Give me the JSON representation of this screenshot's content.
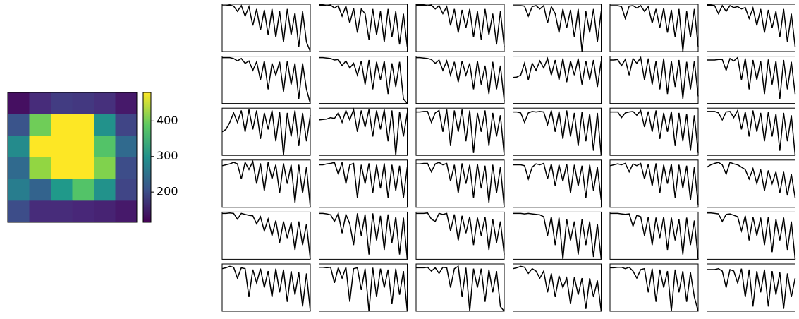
{
  "chart_data": [
    {
      "type": "heatmap",
      "colormap": "viridis",
      "values": [
        [
          130,
          160,
          180,
          175,
          165,
          140
        ],
        [
          210,
          400,
          480,
          480,
          300,
          190
        ],
        [
          290,
          480,
          480,
          480,
          380,
          240
        ],
        [
          240,
          420,
          480,
          480,
          410,
          200
        ],
        [
          270,
          230,
          310,
          380,
          300,
          190
        ],
        [
          200,
          160,
          160,
          155,
          150,
          140
        ]
      ],
      "zlim": [
        115,
        480
      ],
      "zticks": [
        200,
        300,
        400
      ]
    },
    {
      "type": "line_grid",
      "rows": 6,
      "cols": 6,
      "color": "#000000",
      "ylim": [
        0,
        1
      ],
      "series": [
        {
          "values": [
            0.97,
            0.97,
            0.98,
            0.96,
            0.85,
            0.97,
            0.75,
            0.95,
            0.55,
            0.9,
            0.45,
            0.88,
            0.35,
            0.9,
            0.3,
            0.85,
            0.2,
            0.9,
            0.35,
            0.82,
            0.1,
            0.85,
            0.2,
            0.0
          ]
        },
        {
          "values": [
            0.98,
            0.98,
            0.97,
            0.98,
            0.92,
            0.97,
            0.75,
            0.96,
            0.6,
            0.92,
            0.4,
            0.9,
            0.8,
            0.25,
            0.9,
            0.35,
            0.85,
            0.2,
            0.9,
            0.3,
            0.85,
            0.15,
            0.8,
            0.1
          ]
        },
        {
          "values": [
            0.98,
            0.98,
            0.98,
            0.97,
            0.98,
            0.9,
            0.97,
            0.8,
            0.95,
            0.55,
            0.9,
            0.4,
            0.88,
            0.5,
            0.9,
            0.3,
            0.85,
            0.25,
            0.9,
            0.35,
            0.8,
            0.15,
            0.85,
            0.1
          ]
        },
        {
          "values": [
            0.97,
            0.97,
            0.97,
            0.96,
            0.75,
            0.95,
            0.97,
            0.9,
            0.97,
            0.6,
            0.95,
            0.8,
            0.4,
            0.9,
            0.5,
            0.88,
            0.3,
            0.9,
            0.0,
            0.85,
            0.4,
            0.9,
            0.2,
            0.85
          ]
        },
        {
          "values": [
            0.97,
            0.97,
            0.97,
            0.95,
            0.7,
            0.96,
            0.97,
            0.92,
            0.97,
            0.85,
            0.95,
            0.6,
            0.9,
            0.5,
            0.92,
            0.4,
            0.88,
            0.3,
            0.9,
            0.0,
            0.85,
            0.3,
            0.9,
            0.1
          ]
        },
        {
          "values": [
            0.98,
            0.98,
            0.97,
            0.8,
            0.97,
            0.85,
            0.97,
            0.93,
            0.95,
            0.9,
            0.93,
            0.7,
            0.92,
            0.55,
            0.9,
            0.4,
            0.88,
            0.5,
            0.85,
            0.3,
            0.9,
            0.2,
            0.8,
            0.1
          ]
        },
        {
          "values": [
            0.97,
            0.97,
            0.97,
            0.95,
            0.9,
            0.95,
            0.85,
            0.9,
            0.7,
            0.88,
            0.5,
            0.9,
            0.3,
            0.85,
            0.6,
            0.88,
            0.25,
            0.9,
            0.4,
            0.85,
            0.1,
            0.85,
            0.3,
            0.0
          ]
        },
        {
          "values": [
            0.97,
            0.97,
            0.96,
            0.95,
            0.92,
            0.93,
            0.8,
            0.9,
            0.75,
            0.85,
            0.6,
            0.9,
            0.4,
            0.92,
            0.3,
            0.88,
            0.5,
            0.9,
            0.2,
            0.85,
            0.35,
            0.88,
            0.1,
            0.0
          ]
        },
        {
          "values": [
            0.97,
            0.97,
            0.96,
            0.95,
            0.93,
            0.85,
            0.92,
            0.7,
            0.9,
            0.6,
            0.88,
            0.45,
            0.9,
            0.6,
            0.85,
            0.3,
            0.9,
            0.4,
            0.8,
            0.2,
            0.88,
            0.3,
            0.8,
            0.05
          ]
        },
        {
          "values": [
            0.55,
            0.56,
            0.6,
            0.85,
            0.5,
            0.85,
            0.7,
            0.9,
            0.75,
            0.95,
            0.6,
            0.92,
            0.5,
            0.95,
            0.45,
            0.9,
            0.6,
            0.95,
            0.4,
            0.9,
            0.5,
            0.92,
            0.35,
            0.9
          ]
        },
        {
          "values": [
            0.92,
            0.92,
            0.93,
            0.8,
            0.93,
            0.6,
            0.95,
            0.85,
            0.97,
            0.5,
            0.95,
            0.4,
            0.9,
            0.3,
            0.95,
            0.2,
            0.9,
            0.35,
            0.92,
            0.1,
            0.88,
            0.3,
            0.9,
            0.15
          ]
        },
        {
          "values": [
            0.92,
            0.92,
            0.92,
            0.93,
            0.93,
            0.7,
            0.95,
            0.9,
            0.97,
            0.5,
            0.95,
            0.3,
            0.92,
            0.5,
            0.9,
            0.2,
            0.93,
            0.4,
            0.9,
            0.1,
            0.92,
            0.3,
            0.88,
            0.2
          ]
        },
        {
          "values": [
            0.5,
            0.55,
            0.7,
            0.9,
            0.7,
            0.95,
            0.5,
            0.97,
            0.55,
            0.95,
            0.35,
            0.9,
            0.55,
            0.95,
            0.3,
            0.92,
            0.0,
            0.9,
            0.4,
            0.95,
            0.2,
            0.9,
            0.3,
            0.85
          ]
        },
        {
          "values": [
            0.75,
            0.76,
            0.77,
            0.8,
            0.78,
            0.9,
            0.7,
            0.95,
            0.75,
            0.97,
            0.5,
            0.95,
            0.6,
            0.97,
            0.4,
            0.95,
            0.55,
            0.97,
            0.3,
            0.95,
            0.0,
            0.92,
            0.4,
            0.9
          ]
        },
        {
          "values": [
            0.92,
            0.92,
            0.93,
            0.93,
            0.7,
            0.9,
            0.95,
            0.5,
            0.97,
            0.2,
            0.95,
            0.5,
            0.97,
            0.3,
            0.95,
            0.05,
            0.9,
            0.5,
            0.95,
            0.2,
            0.9,
            0.4,
            0.85,
            0.0
          ]
        },
        {
          "values": [
            0.92,
            0.92,
            0.9,
            0.7,
            0.9,
            0.93,
            0.92,
            0.93,
            0.92,
            0.65,
            0.95,
            0.5,
            0.93,
            0.35,
            0.95,
            0.4,
            0.9,
            0.2,
            0.92,
            0.3,
            0.88,
            0.1,
            0.9,
            0.0
          ]
        },
        {
          "values": [
            0.92,
            0.92,
            0.92,
            0.8,
            0.9,
            0.92,
            0.93,
            0.85,
            0.95,
            0.6,
            0.93,
            0.5,
            0.95,
            0.35,
            0.9,
            0.5,
            0.93,
            0.2,
            0.9,
            0.3,
            0.88,
            0.1,
            0.85,
            0.05
          ]
        },
        {
          "values": [
            0.93,
            0.93,
            0.93,
            0.9,
            0.75,
            0.92,
            0.93,
            0.8,
            0.95,
            0.55,
            0.92,
            0.4,
            0.95,
            0.5,
            0.9,
            0.3,
            0.92,
            0.4,
            0.88,
            0.1,
            0.9,
            0.3,
            0.85,
            0.0
          ]
        },
        {
          "values": [
            0.88,
            0.9,
            0.92,
            0.95,
            0.92,
            0.6,
            0.95,
            0.8,
            0.97,
            0.5,
            0.93,
            0.35,
            0.95,
            0.6,
            0.9,
            0.3,
            0.93,
            0.5,
            0.9,
            0.1,
            0.9,
            0.3,
            0.85,
            0.0
          ]
        },
        {
          "values": [
            0.9,
            0.9,
            0.92,
            0.93,
            0.95,
            0.7,
            0.95,
            0.5,
            0.9,
            0.93,
            0.2,
            0.9,
            0.5,
            0.93,
            0.3,
            0.9,
            0.4,
            0.93,
            0.2,
            0.9,
            0.35,
            0.88,
            0.2,
            0.85
          ]
        },
        {
          "values": [
            0.92,
            0.92,
            0.93,
            0.93,
            0.75,
            0.92,
            0.95,
            0.9,
            0.93,
            0.55,
            0.9,
            0.3,
            0.93,
            0.5,
            0.9,
            0.2,
            0.92,
            0.4,
            0.88,
            0.1,
            0.9,
            0.3,
            0.85,
            0.0
          ]
        },
        {
          "values": [
            0.9,
            0.9,
            0.9,
            0.88,
            0.6,
            0.85,
            0.92,
            0.9,
            0.93,
            0.6,
            0.92,
            0.45,
            0.9,
            0.55,
            0.92,
            0.3,
            0.9,
            0.45,
            0.88,
            0.2,
            0.9,
            0.35,
            0.85,
            0.15
          ]
        },
        {
          "values": [
            0.88,
            0.9,
            0.92,
            0.9,
            0.93,
            0.75,
            0.92,
            0.88,
            0.93,
            0.6,
            0.92,
            0.45,
            0.93,
            0.3,
            0.9,
            0.5,
            0.92,
            0.2,
            0.9,
            0.4,
            0.88,
            0.15,
            0.85,
            0.05
          ]
        },
        {
          "values": [
            0.85,
            0.9,
            0.93,
            0.95,
            0.9,
            0.7,
            0.95,
            0.92,
            0.9,
            0.85,
            0.8,
            0.6,
            0.82,
            0.5,
            0.8,
            0.35,
            0.78,
            0.5,
            0.75,
            0.3,
            0.75,
            0.25,
            0.7,
            0.2
          ]
        },
        {
          "values": [
            0.97,
            0.97,
            0.98,
            0.97,
            0.85,
            0.97,
            0.95,
            0.93,
            0.92,
            0.75,
            0.9,
            0.6,
            0.85,
            0.5,
            0.82,
            0.35,
            0.8,
            0.45,
            0.78,
            0.2,
            0.8,
            0.3,
            0.75,
            0.0
          ]
        },
        {
          "values": [
            0.97,
            0.97,
            0.96,
            0.94,
            0.8,
            0.97,
            0.55,
            0.95,
            0.75,
            0.3,
            0.97,
            0.5,
            0.95,
            0.1,
            0.97,
            0.4,
            0.92,
            0.2,
            0.95,
            0.35,
            0.9,
            0.1,
            0.88,
            0.0
          ]
        },
        {
          "values": [
            0.97,
            0.97,
            0.97,
            0.98,
            0.85,
            0.8,
            0.97,
            0.95,
            0.97,
            0.6,
            0.95,
            0.4,
            0.92,
            0.55,
            0.9,
            0.3,
            0.88,
            0.5,
            0.9,
            0.2,
            0.85,
            0.35,
            0.8,
            0.1
          ]
        },
        {
          "values": [
            0.97,
            0.97,
            0.97,
            0.96,
            0.97,
            0.96,
            0.95,
            0.94,
            0.9,
            0.5,
            0.9,
            0.3,
            0.88,
            0.0,
            0.85,
            0.4,
            0.8,
            0.1,
            0.85,
            0.3,
            0.8,
            0.05,
            0.75,
            0.0
          ]
        },
        {
          "values": [
            0.97,
            0.97,
            0.97,
            0.96,
            0.95,
            0.96,
            0.7,
            0.93,
            0.9,
            0.5,
            0.9,
            0.3,
            0.88,
            0.45,
            0.9,
            0.2,
            0.88,
            0.4,
            0.85,
            0.1,
            0.88,
            0.3,
            0.82,
            0.0
          ]
        },
        {
          "values": [
            0.98,
            0.98,
            0.97,
            0.96,
            0.8,
            0.95,
            0.96,
            0.93,
            0.9,
            0.6,
            0.92,
            0.4,
            0.9,
            0.5,
            0.88,
            0.3,
            0.9,
            0.15,
            0.85,
            0.4,
            0.88,
            0.2,
            0.8,
            0.0
          ]
        },
        {
          "values": [
            0.9,
            0.92,
            0.95,
            0.93,
            0.7,
            0.92,
            0.9,
            0.3,
            0.88,
            0.6,
            0.9,
            0.5,
            0.85,
            0.3,
            0.9,
            0.4,
            0.88,
            0.2,
            0.85,
            0.35,
            0.82,
            0.1,
            0.8,
            0.0
          ]
        },
        {
          "values": [
            0.93,
            0.93,
            0.92,
            0.93,
            0.6,
            0.92,
            0.7,
            0.93,
            0.2,
            0.9,
            0.92,
            0.45,
            0.9,
            0.0,
            0.92,
            0.3,
            0.9,
            0.5,
            0.88,
            0.15,
            0.9,
            0.35,
            0.85,
            0.0
          ]
        },
        {
          "values": [
            0.92,
            0.92,
            0.92,
            0.93,
            0.85,
            0.92,
            0.8,
            0.93,
            0.92,
            0.5,
            0.9,
            0.95,
            0.3,
            0.92,
            0.0,
            0.9,
            0.5,
            0.9,
            0.2,
            0.88,
            0.4,
            0.85,
            0.1,
            0.0
          ]
        },
        {
          "values": [
            0.9,
            0.92,
            0.95,
            0.93,
            0.8,
            0.9,
            0.85,
            0.7,
            0.85,
            0.4,
            0.8,
            0.3,
            0.75,
            0.5,
            0.7,
            0.15,
            0.72,
            0.35,
            0.7,
            0.05,
            0.7,
            0.3,
            0.65,
            0.0
          ]
        },
        {
          "values": [
            0.92,
            0.92,
            0.93,
            0.93,
            0.9,
            0.93,
            0.85,
            0.7,
            0.88,
            0.9,
            0.4,
            0.9,
            0.2,
            0.88,
            0.5,
            0.85,
            0.0,
            0.88,
            0.4,
            0.85,
            0.2,
            0.82,
            0.3,
            0.0
          ]
        },
        {
          "values": [
            0.88,
            0.88,
            0.88,
            0.9,
            0.85,
            0.5,
            0.88,
            0.85,
            0.6,
            0.9,
            0.3,
            0.88,
            0.1,
            0.85,
            0.4,
            0.88,
            0.1,
            0.85,
            0.35,
            0.82,
            0.05,
            0.8,
            0.3,
            0.7
          ]
        }
      ]
    }
  ]
}
